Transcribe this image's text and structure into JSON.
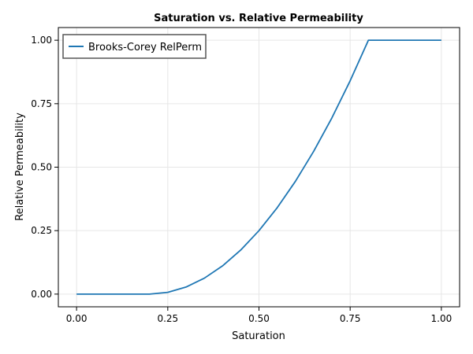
{
  "chart_data": {
    "type": "line",
    "title": "Saturation vs. Relative Permeability",
    "xlabel": "Saturation",
    "ylabel": "Relative Permeability",
    "xlim": [
      -0.05,
      1.05
    ],
    "ylim": [
      -0.05,
      1.05
    ],
    "grid": true,
    "legend_position": "top-left",
    "xticks": [
      0.0,
      0.25,
      0.5,
      0.75,
      1.0
    ],
    "xtick_labels": [
      "0.00",
      "0.25",
      "0.50",
      "0.75",
      "1.00"
    ],
    "yticks": [
      0.0,
      0.25,
      0.5,
      0.75,
      1.0
    ],
    "ytick_labels": [
      "0.00",
      "0.25",
      "0.50",
      "0.75",
      "1.00"
    ],
    "series": [
      {
        "name": "Brooks-Corey RelPerm",
        "color": "#1f77b4",
        "x": [
          0.0,
          0.05,
          0.1,
          0.15,
          0.2,
          0.25,
          0.3,
          0.35,
          0.4,
          0.45,
          0.5,
          0.55,
          0.6,
          0.65,
          0.7,
          0.75,
          0.8,
          0.85,
          0.9,
          0.95,
          1.0
        ],
        "y": [
          0.0,
          0.0,
          0.0,
          0.0,
          0.0,
          0.0069,
          0.0278,
          0.0625,
          0.1111,
          0.1736,
          0.25,
          0.3403,
          0.4444,
          0.5625,
          0.6944,
          0.8403,
          1.0,
          1.0,
          1.0,
          1.0,
          1.0
        ]
      }
    ]
  }
}
